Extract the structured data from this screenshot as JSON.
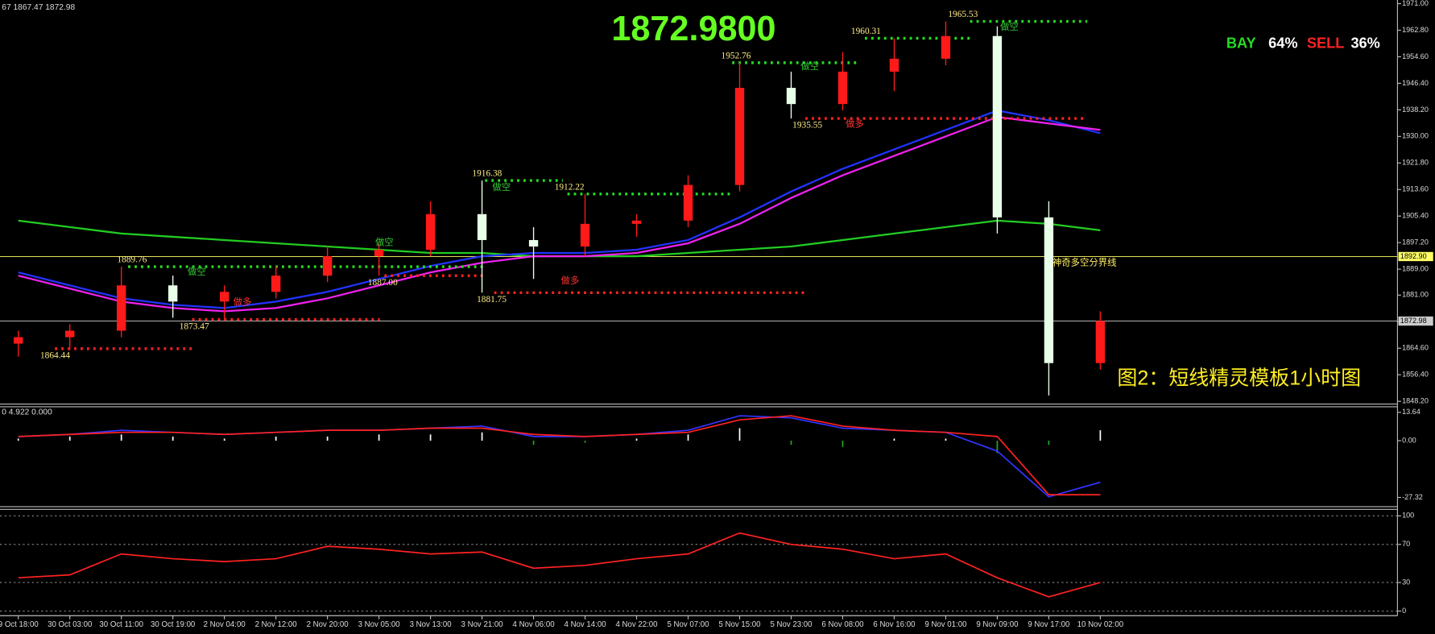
{
  "chart_data": [
    {
      "type": "candlestick",
      "header": "67 1867.47 1872.98",
      "price_display": "1872.9800",
      "caption": "图2：短线精灵模板1小时图",
      "sentiment": [
        {
          "name": "BAY",
          "text": "64%",
          "color": "#22dd22"
        },
        {
          "name": "SELL",
          "text": "36%",
          "color": "#ff2222"
        }
      ],
      "categories": [
        "9 Oct 18:00",
        "30 Oct 03:00",
        "30 Oct 11:00",
        "30 Oct 19:00",
        "2 Nov 04:00",
        "2 Nov 12:00",
        "2 Nov 20:00",
        "3 Nov 05:00",
        "3 Nov 13:00",
        "3 Nov 21:00",
        "4 Nov 06:00",
        "4 Nov 14:00",
        "4 Nov 22:00",
        "5 Nov 07:00",
        "5 Nov 15:00",
        "5 Nov 23:00",
        "6 Nov 08:00",
        "6 Nov 16:00",
        "9 Nov 01:00",
        "9 Nov 09:00",
        "9 Nov 17:00",
        "10 Nov 02:00"
      ],
      "open": [
        1866,
        1868,
        1870,
        1884,
        1879,
        1882,
        1887,
        1893,
        1895,
        1906,
        1898,
        1896,
        1903,
        1904,
        1915,
        1945,
        1940,
        1950,
        1954,
        1961,
        1905,
        1860
      ],
      "high": [
        1870,
        1872,
        1889.76,
        1887,
        1884,
        1890,
        1896,
        1897,
        1910,
        1916.38,
        1902,
        1912.22,
        1906,
        1918,
        1952.76,
        1950,
        1956,
        1960.31,
        1965.53,
        1964,
        1910,
        1876
      ],
      "low": [
        1862,
        1864,
        1868,
        1874,
        1873.47,
        1880,
        1885,
        1887,
        1893,
        1881.75,
        1886,
        1893,
        1899,
        1902,
        1913,
        1935.55,
        1938,
        1944,
        1952,
        1900,
        1850,
        1858
      ],
      "close": [
        1868,
        1870,
        1884,
        1879,
        1882,
        1887,
        1893,
        1895,
        1906,
        1898,
        1896,
        1903,
        1904,
        1915,
        1945,
        1940,
        1950,
        1954,
        1961,
        1905,
        1860,
        1872.98
      ],
      "up_color": "#ff1a1a",
      "down_color": "#e8ffe8",
      "lines": [
        {
          "color": "#22cc22",
          "values": [
            1904,
            1902,
            1900,
            1899,
            1898,
            1897,
            1896,
            1895,
            1894,
            1894,
            1893,
            1893,
            1893,
            1894,
            1895,
            1896,
            1898,
            1900,
            1902,
            1904,
            1903,
            1901
          ]
        },
        {
          "color": "#2233ff",
          "values": [
            1888,
            1884,
            1880,
            1878,
            1877,
            1879,
            1882,
            1886,
            1890,
            1893,
            1894,
            1894,
            1895,
            1898,
            1905,
            1913,
            1920,
            1926,
            1932,
            1938,
            1935,
            1931
          ]
        },
        {
          "color": "#ee22ee",
          "values": [
            1887,
            1883,
            1879,
            1877,
            1876,
            1877,
            1880,
            1884,
            1888,
            1891,
            1893,
            1893,
            1894,
            1897,
            1903,
            1911,
            1918,
            1924,
            1930,
            1936,
            1934,
            1932
          ]
        }
      ],
      "levels": [
        {
          "value": 1965.53,
          "color": "#22dd22"
        },
        {
          "value": 1960.31,
          "color": "#22dd22"
        },
        {
          "value": 1952.76,
          "color": "#22dd22"
        },
        {
          "value": 1916.38,
          "color": "#22dd22"
        },
        {
          "value": 1912.22,
          "color": "#22dd22"
        },
        {
          "value": 1889.76,
          "color": "#22dd22"
        },
        {
          "value": 1935.55,
          "color": "#ff2222"
        },
        {
          "value": 1887,
          "label": "1887.00",
          "color": "#ff2222"
        },
        {
          "value": 1881.75,
          "color": "#ff2222"
        },
        {
          "value": 1873.47,
          "color": "#ff2222"
        },
        {
          "value": 1864.44,
          "color": "#ff2222"
        }
      ],
      "signals": [
        {
          "text": "做空",
          "color": "#33cc33"
        },
        {
          "text": "做空",
          "color": "#33cc33"
        },
        {
          "text": "做空",
          "color": "#33cc33"
        },
        {
          "text": "做空",
          "color": "#33cc33"
        },
        {
          "text": "做空",
          "color": "#33cc33"
        },
        {
          "text": "做多",
          "color": "#ff3333"
        },
        {
          "text": "做多",
          "color": "#ff3333"
        },
        {
          "text": "做多",
          "color": "#ff3333"
        }
      ],
      "price_lines": [
        {
          "value": 1892.9,
          "label": "1892.90",
          "color": "#ffff66",
          "name": "神奇多空分界线"
        },
        {
          "value": 1872.98,
          "color": "#cccccc"
        }
      ],
      "ylim": [
        1848.2,
        1971
      ],
      "yticks": [
        {
          "value": 1971,
          "label": "1971.00"
        },
        {
          "value": 1962.8,
          "label": "1962.80"
        },
        {
          "value": 1954.6,
          "label": "1954.60"
        },
        {
          "value": 1946.4,
          "label": "1946.40"
        },
        {
          "value": 1938.2,
          "label": "1938.20"
        },
        {
          "value": 1930,
          "label": "1930.00"
        },
        {
          "value": 1921.8,
          "label": "1921.80"
        },
        {
          "value": 1913.6,
          "label": "1913.60"
        },
        {
          "value": 1905.4,
          "label": "1905.40"
        },
        {
          "value": 1897.2,
          "label": "1897.20"
        },
        {
          "value": 1889,
          "label": "1889.00"
        },
        {
          "value": 1881,
          "label": "1881.00"
        },
        {
          "value": 1872.8,
          "label": "1872.80"
        },
        {
          "value": 1864.6,
          "label": "1864.60"
        },
        {
          "value": 1856.4,
          "label": "1856.40"
        },
        {
          "value": 1848.2,
          "label": "1848.20"
        }
      ]
    },
    {
      "type": "macd",
      "header": "0 4.922 0.000",
      "series": [
        {
          "color": "#3333ff",
          "values": [
            2,
            3,
            5,
            4,
            3,
            4,
            5,
            5,
            6,
            7,
            2,
            2,
            3,
            5,
            12,
            11,
            6,
            5,
            4,
            -5,
            -27,
            -20
          ]
        },
        {
          "color": "#ff2222",
          "values": [
            2,
            3,
            4,
            4,
            3,
            4,
            5,
            5,
            6,
            6,
            3,
            2,
            3,
            4,
            10,
            12,
            7,
            5,
            4,
            2,
            -26,
            -26
          ]
        }
      ],
      "histogram": {
        "up_color": "#ffffff",
        "down_color": "#22aa22",
        "values": [
          1,
          2,
          3,
          2,
          1,
          2,
          2,
          3,
          3,
          4,
          -2,
          -1,
          1,
          3,
          6,
          -2,
          -3,
          1,
          1,
          -6,
          -2,
          5
        ]
      },
      "ylim": [
        -31.3,
        16.3
      ],
      "yticks": [
        13.64,
        {
          "value": 0,
          "label": "0.00"
        },
        -27.32
      ]
    },
    {
      "type": "line",
      "series": [
        {
          "color": "#ff2222",
          "values": [
            35,
            38,
            60,
            55,
            52,
            55,
            68,
            65,
            60,
            62,
            45,
            48,
            55,
            60,
            82,
            70,
            65,
            55,
            60,
            35,
            15,
            30
          ]
        }
      ],
      "ylim": [
        -4.8,
        105.8
      ],
      "yticks": [
        100,
        70,
        30,
        0
      ]
    }
  ]
}
